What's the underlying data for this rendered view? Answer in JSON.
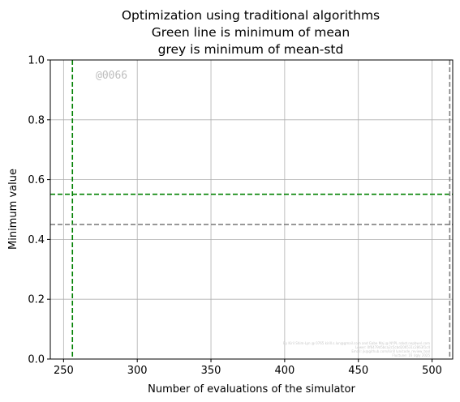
{
  "chart_data": {
    "type": "line",
    "title_lines": [
      "Optimization using traditional algorithms",
      "Green line is minimum of mean",
      "grey is minimum of mean-std"
    ],
    "xlabel": "Number of evaluations of the simulator",
    "ylabel": "Minimum value",
    "xlim": [
      241,
      514
    ],
    "ylim": [
      0.0,
      1.0
    ],
    "xticks": [
      250,
      300,
      350,
      400,
      450,
      500
    ],
    "yticks": [
      0.0,
      0.2,
      0.4,
      0.6,
      0.8,
      1.0
    ],
    "xtick_labels": [
      "250",
      "300",
      "350",
      "400",
      "450",
      "500"
    ],
    "ytick_labels": [
      "0.0",
      "0.2",
      "0.4",
      "0.6",
      "0.8",
      "1.0"
    ],
    "grid": true,
    "reference_lines": [
      {
        "orientation": "vertical",
        "value": 256,
        "color": "#008000",
        "style": "dashed"
      },
      {
        "orientation": "horizontal",
        "value": 0.551,
        "color": "#008000",
        "style": "dashed"
      },
      {
        "orientation": "vertical",
        "value": 512,
        "color": "#808080",
        "style": "dashed"
      },
      {
        "orientation": "horizontal",
        "value": 0.45,
        "color": "#808080",
        "style": "dashed"
      }
    ],
    "annotations": [
      "@0066"
    ]
  },
  "watermark_text": "@0066",
  "fine_print": [
    "By Kiril Shim-Lyn @ 0765 kirill.s.lun@gmail.com and Gabe Maj @ NYPL robot.nepbwvl.com",
    "Lower: 0f6479d5bca2c5cbd206531c2863f1c4",
    "Email: jk@github.com/kirill lyn/code_review_tool",
    "Fluctune: 16 Ugly 2025"
  ]
}
